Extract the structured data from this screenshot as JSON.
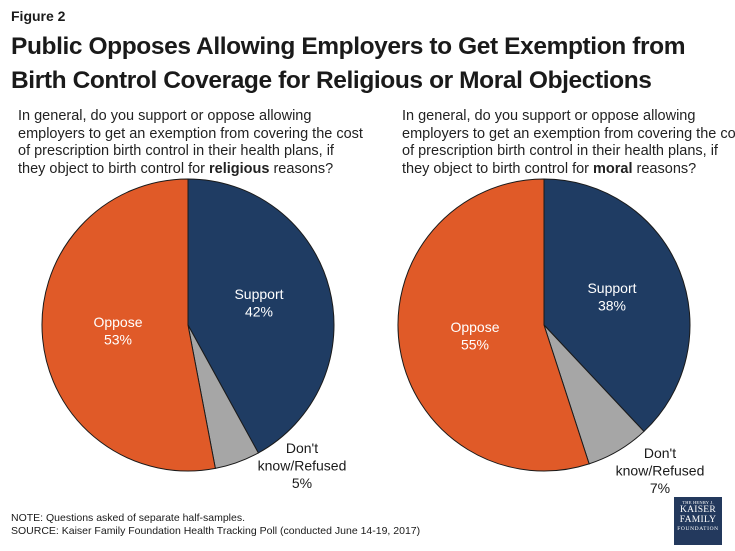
{
  "figure_label": "Figure 2",
  "title": {
    "line1": "Public Opposes Allowing Employers to Get Exemption from",
    "line2": "Birth Control Coverage for Religious or Moral Objections"
  },
  "questions": [
    {
      "line1": "In general, do you support or oppose allowing",
      "line2": "employers to get an exemption from covering the cost",
      "line3": "of prescription birth control in their health plans, if",
      "line4_pre": "they object to birth control for ",
      "line4_bold": "religious",
      "line4_post": " reasons?"
    },
    {
      "line1": "In general, do you support or oppose allowing",
      "line2": "employers to get an exemption from covering the cost",
      "line3": "of prescription birth control in their health plans, if",
      "line4_pre": "they object to birth control for ",
      "line4_bold": "moral",
      "line4_post": " reasons?"
    }
  ],
  "chart_data": [
    {
      "type": "pie",
      "slices": [
        {
          "label": "Support",
          "value": 42,
          "value_label": "42%",
          "color": "#1f3c63"
        },
        {
          "label": "Don't know/Refused",
          "label_line1": "Don't",
          "label_line2": "know/Refused",
          "value": 5,
          "value_label": "5%",
          "color": "#a6a6a6"
        },
        {
          "label": "Oppose",
          "value": 53,
          "value_label": "53%",
          "color": "#e05a28"
        }
      ]
    },
    {
      "type": "pie",
      "slices": [
        {
          "label": "Support",
          "value": 38,
          "value_label": "38%",
          "color": "#1f3c63"
        },
        {
          "label": "Don't know/Refused",
          "label_line1": "Don't",
          "label_line2": "know/Refused",
          "value": 7,
          "value_label": "7%",
          "color": "#a6a6a6"
        },
        {
          "label": "Oppose",
          "value": 55,
          "value_label": "55%",
          "color": "#e05a28"
        }
      ]
    }
  ],
  "note": "NOTE: Questions asked of separate half-samples.",
  "source": "SOURCE: Kaiser Family Foundation Health Tracking Poll (conducted June 14-19, 2017)",
  "logo": {
    "line1": "THE HENRY J.",
    "line2": "KAISER",
    "line3": "FAMILY",
    "line4": "FOUNDATION"
  }
}
